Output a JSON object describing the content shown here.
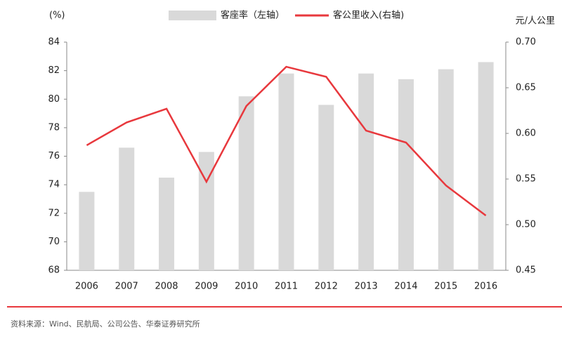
{
  "chart_data": {
    "type": "bar",
    "left_unit": "(%)",
    "right_unit": "元/人公里",
    "source": "资料来源：Wind、民航局、公司公告、华泰证券研究所",
    "categories": [
      "2006",
      "2007",
      "2008",
      "2009",
      "2010",
      "2011",
      "2012",
      "2013",
      "2014",
      "2015",
      "2016"
    ],
    "series": [
      {
        "name": "客座率（左轴）",
        "type": "bar",
        "color": "#d9d9d9",
        "axis": "y",
        "values": [
          73.5,
          76.6,
          74.5,
          76.3,
          80.2,
          81.8,
          79.6,
          81.8,
          81.4,
          82.1,
          82.6
        ]
      },
      {
        "name": "客公里收入(右轴)",
        "type": "line",
        "color": "#e8383d",
        "axis": "y2",
        "values": [
          0.587,
          0.612,
          0.627,
          0.547,
          0.63,
          0.673,
          0.662,
          0.603,
          0.59,
          0.543,
          0.51
        ]
      }
    ],
    "ylim": [
      68,
      84
    ],
    "yticks": [
      68,
      70,
      72,
      74,
      76,
      78,
      80,
      82,
      84
    ],
    "y2lim": [
      0.45,
      0.7
    ],
    "y2ticks": [
      0.45,
      {
        "value": 0.5,
        "label": "0.50"
      },
      0.55,
      {
        "value": 0.6,
        "label": "0.60"
      },
      0.65,
      {
        "value": 0.7,
        "label": "0.70"
      }
    ],
    "grid": false,
    "legend": "top"
  }
}
